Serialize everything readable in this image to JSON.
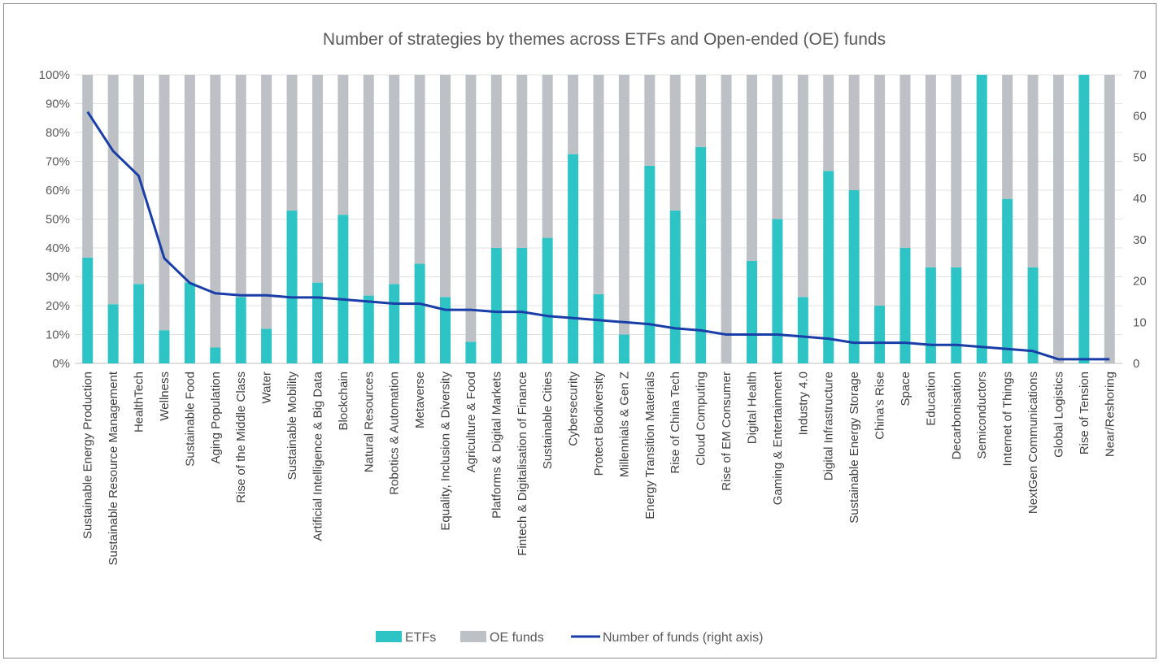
{
  "chart_data": {
    "type": "bar",
    "title": "Number of strategies by themes across ETFs and Open-ended (OE) funds",
    "categories": [
      "Sustainable Energy Production",
      "Sustainable Resource Management",
      "HealthTech",
      "Wellness",
      "Sustainable Food",
      "Aging Population",
      "Rise of the Middle Class",
      "Water",
      "Sustainable Mobility",
      "Artificial Intelligence & Big Data",
      "Blockchain",
      "Natural Resources",
      "Robotics & Automation",
      "Metaverse",
      "Equality, Inclusion & Diversity",
      "Agriculture & Food",
      "Platforms & Digital Markets",
      "Fintech & Digitalisation of Finance",
      "Sustainable Cities",
      "Cybersecurity",
      "Protect Biodiversity",
      "Millennials & Gen Z",
      "Energy Transition Materials",
      "Rise of China Tech",
      "Cloud Computing",
      "Rise of EM Consumer",
      "Digital Health",
      "Gaming & Entertainment",
      "Industry 4.0",
      "Digital Infrastructure",
      "Sustainable Energy Storage",
      "China's Rise",
      "Space",
      "Education",
      "Decarbonisation",
      "Semiconductors",
      "Internet of Things",
      "NextGen Communications",
      "Global Logistics",
      "Rise of Tension",
      "Near/Reshoring"
    ],
    "series": [
      {
        "name": "ETFs",
        "type": "stacked-bar",
        "axis": "left",
        "color": "#2ec4c6",
        "values": [
          36.7,
          20.5,
          27.5,
          11.5,
          28,
          5.5,
          23,
          12,
          53,
          28,
          51.5,
          23.5,
          27.5,
          34.5,
          23,
          7.5,
          40,
          40,
          43.5,
          72.5,
          24,
          10,
          68.5,
          53,
          75,
          0,
          35.5,
          50,
          23,
          66.7,
          60,
          20,
          40,
          33.3,
          33.3,
          100,
          57,
          33.3,
          0,
          100,
          0
        ]
      },
      {
        "name": "OE funds",
        "type": "stacked-bar",
        "axis": "left",
        "color": "#bdc1c6",
        "values": [
          63.3,
          79.5,
          72.5,
          88.5,
          72,
          94.5,
          77,
          88,
          47,
          72,
          48.5,
          76.5,
          72.5,
          65.5,
          77,
          92.5,
          60,
          60,
          56.5,
          27.5,
          76,
          90,
          31.5,
          47,
          25,
          100,
          64.5,
          50,
          77,
          33.3,
          40,
          80,
          60,
          66.7,
          66.7,
          0,
          43,
          66.7,
          100,
          0,
          100
        ]
      },
      {
        "name": "Number of funds (right axis)",
        "type": "line",
        "axis": "right",
        "color": "#1a3ea8",
        "values": [
          61,
          51.5,
          45.5,
          25.5,
          19.5,
          17,
          16.5,
          16.5,
          16,
          16,
          15.5,
          15,
          14.5,
          14.5,
          13,
          13,
          12.5,
          12.5,
          11.5,
          11,
          10.5,
          10,
          9.5,
          8.5,
          8,
          7,
          7,
          7,
          6.5,
          6,
          5,
          5,
          5,
          4.5,
          4.5,
          4,
          3.5,
          3,
          1,
          1,
          1
        ]
      }
    ],
    "y_left": {
      "min": 0,
      "max": 100,
      "ticks": [
        "0%",
        "10%",
        "20%",
        "30%",
        "40%",
        "50%",
        "60%",
        "70%",
        "80%",
        "90%",
        "100%"
      ]
    },
    "y_right": {
      "min": 0,
      "max": 70,
      "ticks": [
        "0",
        "10",
        "20",
        "30",
        "40",
        "50",
        "60",
        "70"
      ]
    },
    "grid": true,
    "legend": {
      "position": "bottom"
    }
  }
}
